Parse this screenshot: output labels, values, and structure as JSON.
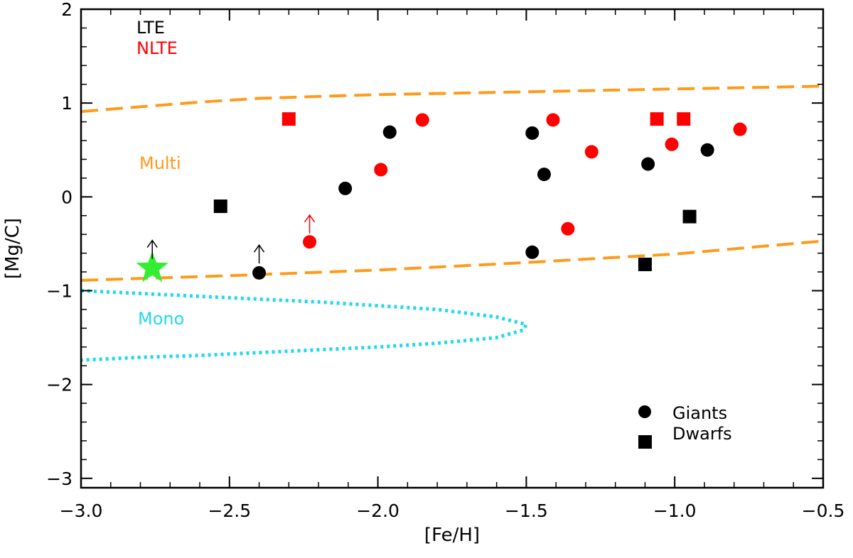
{
  "chart_data": {
    "type": "scatter",
    "xlabel": "[Fe/H]",
    "ylabel": "[Mg/C]",
    "xlim": [
      -3.0,
      -0.5
    ],
    "ylim": [
      -3.1,
      2.0
    ],
    "xticks": [
      -3.0,
      -2.5,
      -2.0,
      -1.5,
      -1.0,
      -0.5
    ],
    "xtick_labels": [
      "−3.0",
      "−2.5",
      "−2.0",
      "−1.5",
      "−1.0",
      "−0.5"
    ],
    "yticks": [
      -3,
      -2,
      -1,
      0,
      1,
      2
    ],
    "ytick_labels": [
      "−3",
      "−2",
      "−1",
      "0",
      "1",
      "2"
    ],
    "colors": {
      "lte": "#000000",
      "nlte": "#ff0000",
      "multi": "#ff9a1a",
      "mono": "#22d8f0",
      "star": "#33ee33"
    },
    "annotations": {
      "lte": "LTE",
      "nlte": "NLTE",
      "multi": "Multi",
      "mono": "Mono"
    },
    "legend": {
      "placement": "bottom-right",
      "giants": "Giants",
      "dwarfs": "Dwarfs"
    },
    "series": [
      {
        "name": "LTE giants",
        "marker": "circle",
        "color": "#000000",
        "points": [
          [
            -1.96,
            0.69
          ],
          [
            -2.11,
            0.09
          ],
          [
            -1.48,
            0.68
          ],
          [
            -1.44,
            0.24
          ],
          [
            -1.09,
            0.35
          ],
          [
            -0.89,
            0.5
          ],
          [
            -1.48,
            -0.59
          ],
          [
            -2.4,
            -0.81
          ]
        ]
      },
      {
        "name": "NLTE giants",
        "marker": "circle",
        "color": "#ff0000",
        "points": [
          [
            -1.85,
            0.82
          ],
          [
            -1.99,
            0.29
          ],
          [
            -1.41,
            0.82
          ],
          [
            -1.28,
            0.48
          ],
          [
            -1.01,
            0.56
          ],
          [
            -0.78,
            0.72
          ],
          [
            -1.36,
            -0.34
          ],
          [
            -2.23,
            -0.48
          ]
        ]
      },
      {
        "name": "LTE dwarfs",
        "marker": "square",
        "color": "#000000",
        "points": [
          [
            -2.53,
            -0.1
          ],
          [
            -0.95,
            -0.21
          ],
          [
            -1.1,
            -0.72
          ]
        ]
      },
      {
        "name": "NLTE dwarfs",
        "marker": "square",
        "color": "#ff0000",
        "points": [
          [
            -2.3,
            0.83
          ],
          [
            -1.06,
            0.83
          ],
          [
            -0.97,
            0.83
          ]
        ]
      },
      {
        "name": "Target star",
        "marker": "star",
        "color": "#33ee33",
        "points": [
          [
            -2.76,
            -0.76
          ]
        ]
      }
    ],
    "lower_limits": [
      {
        "x": -2.76,
        "y": -0.63,
        "color": "#000000"
      },
      {
        "x": -2.4,
        "y": -0.68,
        "color": "#000000"
      },
      {
        "x": -2.23,
        "y": -0.36,
        "color": "#ff0000"
      }
    ],
    "lines": [
      {
        "name": "Multi upper",
        "style": "dashed",
        "color": "#ff9a1a",
        "points": [
          [
            -3.0,
            0.91
          ],
          [
            -2.8,
            0.96
          ],
          [
            -2.6,
            1.01
          ],
          [
            -2.4,
            1.05
          ],
          [
            -2.2,
            1.07
          ],
          [
            -2.0,
            1.09
          ],
          [
            -1.5,
            1.12
          ],
          [
            -1.0,
            1.15
          ],
          [
            -0.5,
            1.18
          ]
        ]
      },
      {
        "name": "Multi lower",
        "style": "dashed",
        "color": "#ff9a1a",
        "points": [
          [
            -3.0,
            -0.89
          ],
          [
            -2.5,
            -0.84
          ],
          [
            -2.0,
            -0.78
          ],
          [
            -1.5,
            -0.7
          ],
          [
            -1.0,
            -0.61
          ],
          [
            -0.5,
            -0.47
          ]
        ]
      },
      {
        "name": "Mono",
        "style": "dotted",
        "color": "#22d8f0",
        "points": [
          [
            -3.0,
            -1.0
          ],
          [
            -2.8,
            -1.03
          ],
          [
            -2.6,
            -1.06
          ],
          [
            -2.4,
            -1.09
          ],
          [
            -2.2,
            -1.12
          ],
          [
            -2.0,
            -1.16
          ],
          [
            -1.8,
            -1.2
          ],
          [
            -1.6,
            -1.28
          ],
          [
            -1.5,
            -1.36
          ],
          [
            -1.51,
            -1.42
          ],
          [
            -1.6,
            -1.5
          ],
          [
            -1.8,
            -1.56
          ],
          [
            -2.0,
            -1.6
          ],
          [
            -2.2,
            -1.63
          ],
          [
            -2.4,
            -1.66
          ],
          [
            -2.6,
            -1.69
          ],
          [
            -2.8,
            -1.71
          ],
          [
            -3.0,
            -1.74
          ]
        ]
      }
    ]
  }
}
